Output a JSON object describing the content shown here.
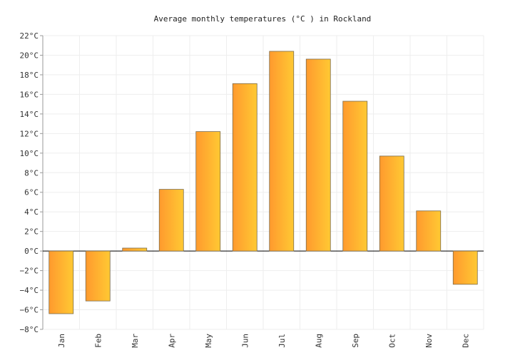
{
  "chart_data": {
    "type": "bar",
    "title": "Average monthly temperatures (°C ) in Rockland",
    "xlabel": "",
    "ylabel": "",
    "categories": [
      "Jan",
      "Feb",
      "Mar",
      "Apr",
      "May",
      "Jun",
      "Jul",
      "Aug",
      "Sep",
      "Oct",
      "Nov",
      "Dec"
    ],
    "series": [
      {
        "values": [
          -6.4,
          -5.1,
          0.3,
          6.3,
          12.2,
          17.1,
          20.4,
          19.6,
          15.3,
          9.7,
          4.1,
          -3.4
        ]
      }
    ],
    "ylim": [
      -8,
      22
    ],
    "yticks": [
      22,
      20,
      18,
      16,
      14,
      12,
      10,
      8,
      6,
      4,
      2,
      0,
      -2,
      -4,
      -6,
      -8
    ],
    "ytick_labels": [
      "22°C",
      "20°C",
      "18°C",
      "16°C",
      "14°C",
      "12°C",
      "10°C",
      "8°C",
      "6°C",
      "4°C",
      "2°C",
      "0°C",
      "−2°C",
      "−4°C",
      "−6°C",
      "−8°C"
    ],
    "grid": true,
    "legend": "none",
    "colors": {
      "bar_gradient_start": "#ff9a2e",
      "bar_gradient_end": "#ffc933",
      "bar_stroke": "#7a6a4a",
      "grid": "#eeeeee",
      "zero_line": "#000000",
      "axis": "#999999"
    }
  }
}
